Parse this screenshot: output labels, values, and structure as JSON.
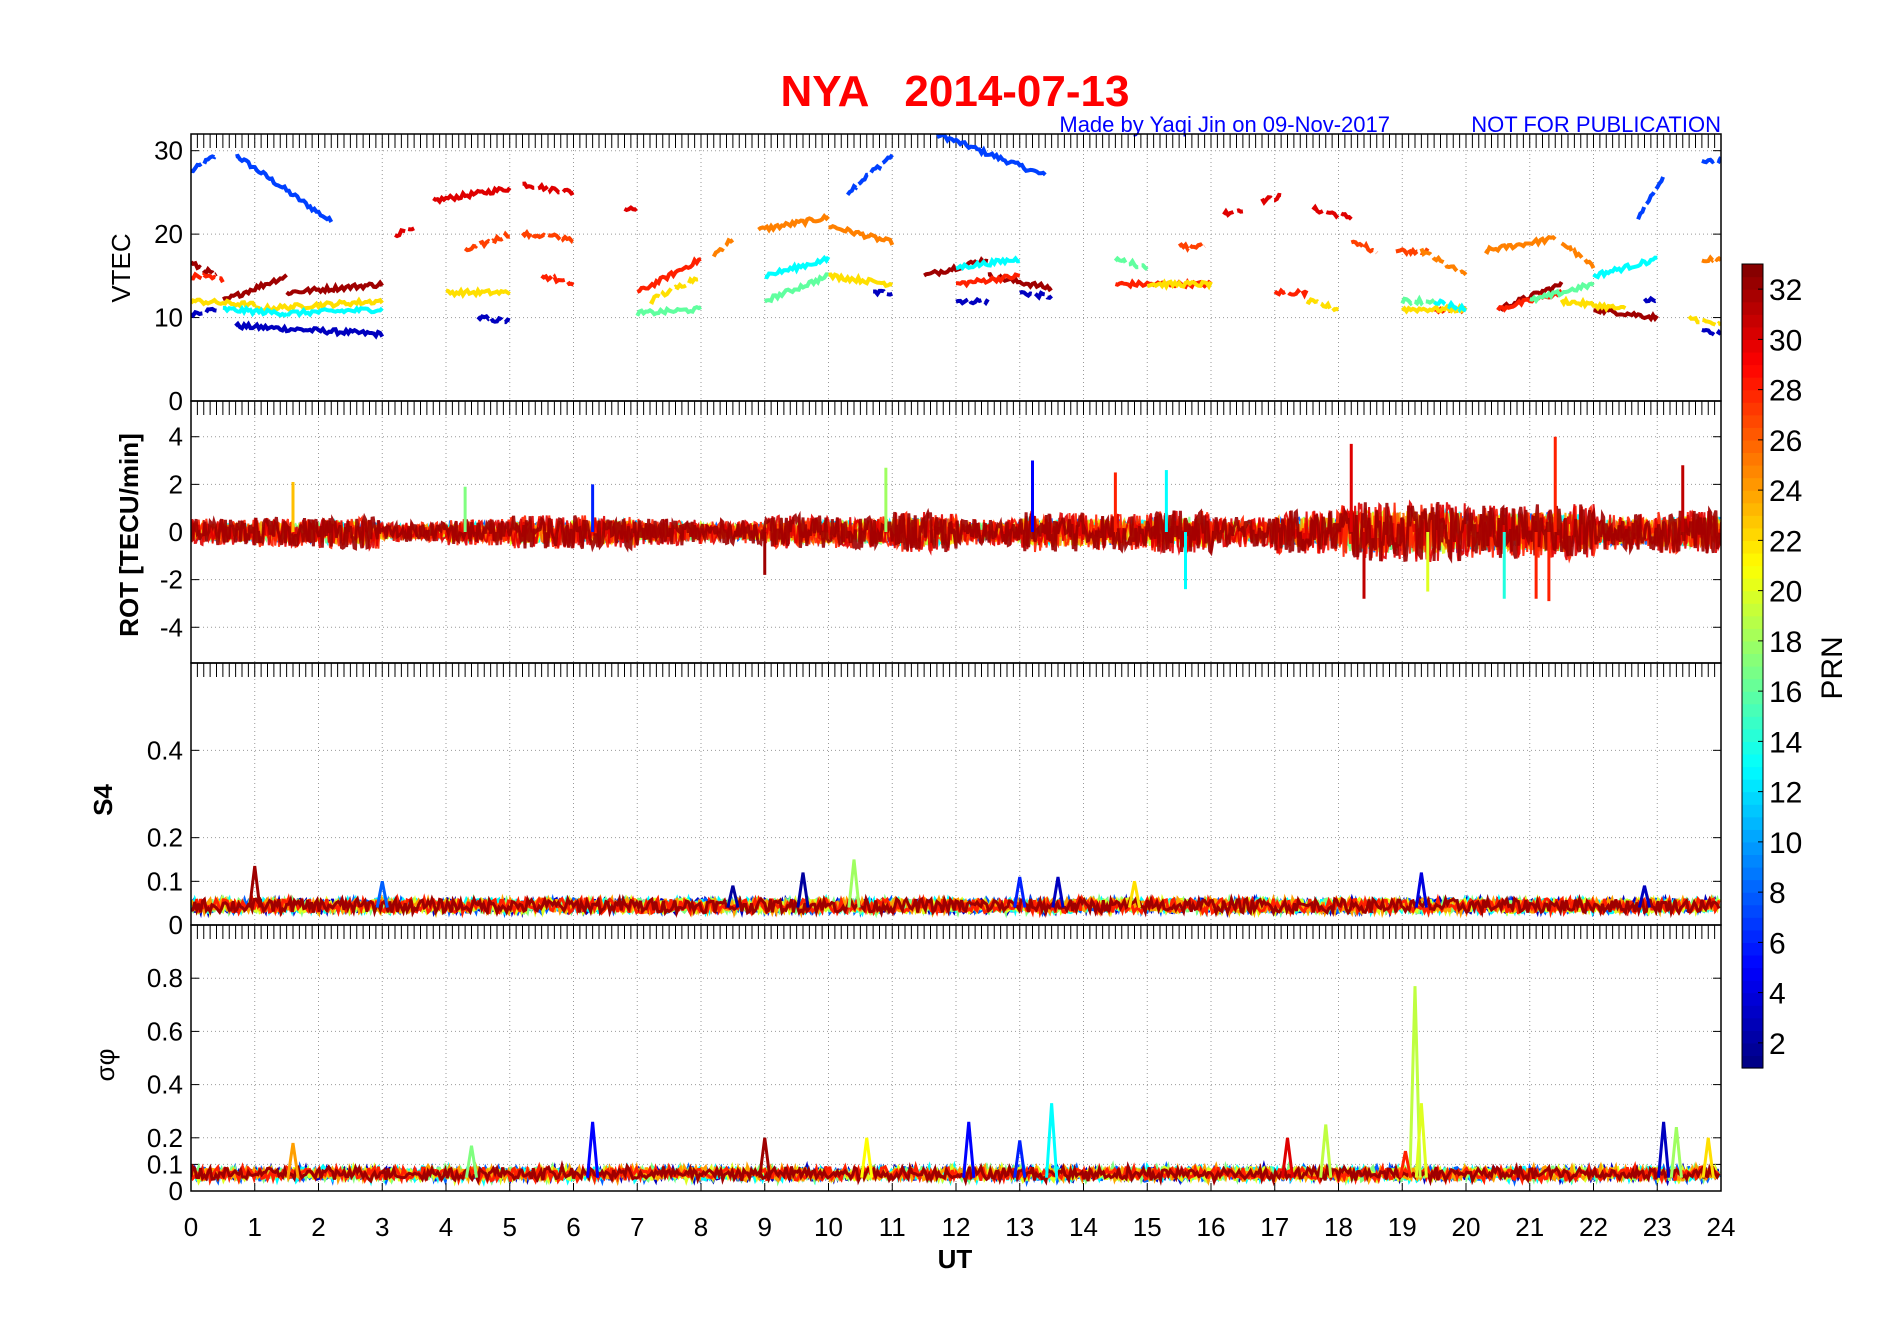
{
  "chart_data": [
    {
      "type": "line",
      "title": "NYA   2014-07-13",
      "subtitle": "Made by Yaqi Jin on 09-Nov-2017",
      "notice": "NOT FOR PUBLICATION",
      "ylabel": "VTEC",
      "ylim": [
        0,
        32
      ],
      "yticks": [
        "0",
        "10",
        "20",
        "30"
      ],
      "ytick_values": [
        0,
        10,
        20,
        30
      ],
      "segments_prn_t0_t1_v0_v1": [
        [
          7,
          0,
          0.4,
          27.5,
          29.5
        ],
        [
          7,
          0.7,
          2.2,
          29.5,
          21.5
        ],
        [
          7,
          10.3,
          11,
          25,
          29.5
        ],
        [
          7,
          11.7,
          13.4,
          32,
          27
        ],
        [
          7,
          22.7,
          23.1,
          22,
          27
        ],
        [
          7,
          23.7,
          24,
          28.5,
          29
        ],
        [
          3,
          0,
          0.4,
          10.5,
          11
        ],
        [
          3,
          0.7,
          3,
          9,
          8
        ],
        [
          3,
          4.5,
          5,
          10,
          9.5
        ],
        [
          3,
          10.7,
          11,
          13,
          13
        ],
        [
          3,
          12,
          12.5,
          12,
          12
        ],
        [
          3,
          13,
          13.5,
          13,
          12.5
        ],
        [
          3,
          22.8,
          23,
          12,
          12
        ],
        [
          3,
          23.7,
          24,
          8.5,
          8
        ],
        [
          30,
          3.2,
          3.5,
          20,
          20.5
        ],
        [
          30,
          3.8,
          5,
          24,
          25.5
        ],
        [
          30,
          5.2,
          6,
          26,
          25
        ],
        [
          30,
          16.2,
          16.5,
          22.5,
          23
        ],
        [
          30,
          16.8,
          17.1,
          24,
          24.5
        ],
        [
          30,
          17.6,
          18.2,
          23,
          22
        ],
        [
          30,
          6.8,
          7,
          23,
          23
        ],
        [
          27,
          4.3,
          5,
          18,
          20
        ],
        [
          27,
          5.2,
          6,
          20,
          19.5
        ],
        [
          27,
          18.2,
          18.6,
          19,
          18
        ],
        [
          27,
          18.9,
          19.4,
          18,
          18
        ],
        [
          27,
          15.5,
          15.9,
          18.5,
          18.5
        ],
        [
          25,
          8.2,
          8.5,
          17.5,
          19.5
        ],
        [
          25,
          8.9,
          10,
          20.5,
          22
        ],
        [
          25,
          10,
          11,
          21,
          19
        ],
        [
          25,
          19.3,
          20,
          18,
          15
        ],
        [
          25,
          20.3,
          21.4,
          18,
          19.5
        ],
        [
          25,
          21.5,
          22,
          19,
          16
        ],
        [
          25,
          23.7,
          24,
          17,
          17
        ],
        [
          32,
          0,
          0.4,
          16.5,
          15
        ],
        [
          32,
          0.5,
          1.5,
          12,
          15
        ],
        [
          32,
          1.5,
          3,
          13,
          14
        ],
        [
          32,
          11.5,
          12.5,
          15,
          17
        ],
        [
          32,
          12.5,
          13.5,
          15,
          13.5
        ],
        [
          32,
          20.5,
          21.5,
          11,
          14
        ],
        [
          32,
          22,
          23,
          11,
          10
        ],
        [
          28,
          0,
          0.5,
          15,
          14.5
        ],
        [
          28,
          5.5,
          6,
          15,
          14
        ],
        [
          28,
          7,
          8,
          13,
          17
        ],
        [
          28,
          12,
          13,
          14,
          15
        ],
        [
          28,
          14.5,
          16,
          14,
          14
        ],
        [
          28,
          17,
          17.5,
          13,
          13
        ],
        [
          28,
          19.5,
          20,
          11,
          11
        ],
        [
          28,
          20.5,
          21.5,
          11,
          13
        ],
        [
          22,
          0,
          1,
          12,
          11.5
        ],
        [
          22,
          1,
          3,
          11,
          12
        ],
        [
          22,
          4,
          5,
          13,
          13
        ],
        [
          22,
          7.2,
          8,
          12,
          15
        ],
        [
          22,
          10,
          11,
          15,
          14
        ],
        [
          22,
          15,
          16,
          14,
          14
        ],
        [
          22,
          17.5,
          18,
          12,
          11
        ],
        [
          22,
          19,
          20,
          11,
          11
        ],
        [
          22,
          21.5,
          22.5,
          12,
          11
        ],
        [
          22,
          23.5,
          24,
          10,
          9
        ],
        [
          13,
          0.5,
          1.5,
          11,
          10.5
        ],
        [
          13,
          1.5,
          3,
          10.5,
          11
        ],
        [
          13,
          9,
          10,
          15,
          17
        ],
        [
          13,
          12,
          13,
          16,
          17
        ],
        [
          13,
          19.5,
          20,
          12,
          11
        ],
        [
          13,
          22,
          23,
          15,
          17
        ],
        [
          16,
          7,
          8,
          10.5,
          11
        ],
        [
          16,
          9,
          10,
          12,
          15
        ],
        [
          16,
          14.5,
          15,
          17,
          16
        ],
        [
          16,
          19,
          19.5,
          12,
          12
        ],
        [
          16,
          21,
          22,
          12,
          14
        ]
      ]
    },
    {
      "type": "line",
      "ylabel": "ROT [TECU/min]",
      "ylim": [
        -5.5,
        5.5
      ],
      "yticks": [
        "-4",
        "-2",
        "0",
        "2",
        "4"
      ],
      "ytick_values": [
        -4,
        -2,
        0,
        2,
        4
      ],
      "hourly_amplitude": [
        0.8,
        0.9,
        1.0,
        0.6,
        0.8,
        1.0,
        1.0,
        0.8,
        0.7,
        1.0,
        1.0,
        1.2,
        0.8,
        1.2,
        1.1,
        1.3,
        0.9,
        1.3,
        1.8,
        1.8,
        1.6,
        1.7,
        1.1,
        1.3
      ],
      "spikes_t_value_prn": [
        [
          1.6,
          2.1,
          23
        ],
        [
          4.3,
          1.9,
          17
        ],
        [
          6.3,
          2.0,
          6
        ],
        [
          10.9,
          2.7,
          18
        ],
        [
          13.2,
          3.0,
          5
        ],
        [
          14.5,
          2.5,
          28
        ],
        [
          15.3,
          2.6,
          13
        ],
        [
          18.2,
          3.7,
          30
        ],
        [
          18.4,
          -2.8,
          31
        ],
        [
          19.4,
          -2.5,
          20
        ],
        [
          20.6,
          -2.8,
          14
        ],
        [
          21.1,
          -2.8,
          28
        ],
        [
          21.4,
          4.0,
          28
        ],
        [
          21.3,
          -2.9,
          28
        ],
        [
          23.4,
          2.8,
          31
        ],
        [
          15.6,
          -2.4,
          13
        ],
        [
          9.0,
          -1.8,
          32
        ]
      ]
    },
    {
      "type": "line",
      "ylabel": "S4",
      "ylim": [
        0,
        0.6
      ],
      "yticks": [
        "0",
        "0.1",
        "0.2",
        "0.4"
      ],
      "ytick_values": [
        0,
        0.1,
        0.2,
        0.4
      ],
      "baseline": 0.04,
      "spikes_t_value_prn": [
        [
          1.0,
          0.135,
          32
        ],
        [
          3.0,
          0.1,
          8
        ],
        [
          8.5,
          0.09,
          2
        ],
        [
          9.6,
          0.12,
          2
        ],
        [
          10.4,
          0.15,
          18
        ],
        [
          13.0,
          0.11,
          6
        ],
        [
          13.6,
          0.11,
          3
        ],
        [
          14.8,
          0.1,
          22
        ],
        [
          19.3,
          0.12,
          4
        ],
        [
          22.8,
          0.09,
          3
        ]
      ]
    },
    {
      "type": "line",
      "ylabel": "σφ",
      "ylim": [
        0,
        1
      ],
      "yticks": [
        "0",
        "0.1",
        "0.2",
        "0.4",
        "0.6",
        "0.8"
      ],
      "ytick_values": [
        0,
        0.1,
        0.2,
        0.4,
        0.6,
        0.8
      ],
      "baseline": 0.05,
      "spikes_t_value_prn": [
        [
          1.6,
          0.18,
          24
        ],
        [
          4.4,
          0.17,
          17
        ],
        [
          6.3,
          0.26,
          5
        ],
        [
          9.0,
          0.2,
          32
        ],
        [
          10.6,
          0.2,
          21
        ],
        [
          12.2,
          0.26,
          5
        ],
        [
          13.0,
          0.19,
          6
        ],
        [
          13.5,
          0.33,
          13
        ],
        [
          17.2,
          0.2,
          30
        ],
        [
          17.8,
          0.25,
          19
        ],
        [
          19.2,
          0.77,
          19
        ],
        [
          19.3,
          0.33,
          20
        ],
        [
          19.05,
          0.15,
          28
        ],
        [
          23.1,
          0.26,
          3
        ],
        [
          23.3,
          0.24,
          18
        ],
        [
          23.8,
          0.2,
          22
        ]
      ]
    }
  ],
  "xaxis": {
    "label": "UT",
    "xlim": [
      0,
      24
    ],
    "ticks": [
      "0",
      "1",
      "2",
      "3",
      "4",
      "5",
      "6",
      "7",
      "8",
      "9",
      "10",
      "11",
      "12",
      "13",
      "14",
      "15",
      "16",
      "17",
      "18",
      "19",
      "20",
      "21",
      "22",
      "23",
      "24"
    ]
  },
  "colorbar": {
    "label": "PRN",
    "range": [
      1,
      33
    ],
    "ticks": [
      "2",
      "4",
      "6",
      "8",
      "10",
      "12",
      "14",
      "16",
      "18",
      "20",
      "22",
      "24",
      "26",
      "28",
      "30",
      "32"
    ],
    "colormap": "jet"
  },
  "colors": {
    "title": "#ff0000",
    "subtitle": "#0000ff"
  }
}
